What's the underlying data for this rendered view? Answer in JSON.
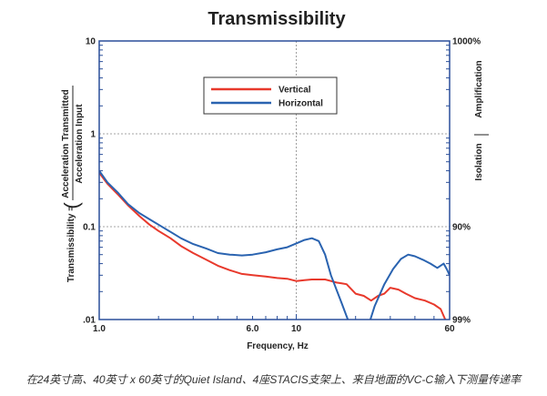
{
  "chart_data": {
    "type": "line",
    "title": "Transmissibility",
    "xlabel": "Frequency, Hz",
    "ylabel_prefix": "Transmissibility =",
    "ylabel_numerator": "Acceleration Transmitted",
    "ylabel_denominator": "Acceleration Input",
    "x_scale": "log",
    "y_scale": "log",
    "xlim": [
      1,
      60
    ],
    "ylim": [
      0.01,
      10
    ],
    "x_ticks": [
      {
        "value": 1,
        "label": "1.0"
      },
      {
        "value": 6,
        "label": "6.0"
      },
      {
        "value": 10,
        "label": "10"
      },
      {
        "value": 60,
        "label": "60"
      }
    ],
    "y_ticks": [
      {
        "value": 10,
        "label": "10"
      },
      {
        "value": 1,
        "label": "1"
      },
      {
        "value": 0.1,
        "label": "0.1"
      },
      {
        "value": 0.01,
        "label": ".01"
      }
    ],
    "right_ticks": [
      {
        "value": 10,
        "label": "1000%"
      },
      {
        "value": 0.1,
        "label": "90%"
      },
      {
        "value": 0.01,
        "label": "99%"
      }
    ],
    "right_labels": {
      "upper": "Amplification",
      "lower": "Isolation"
    },
    "grid": "dashed at decades",
    "legend_placement": "top-center",
    "series": [
      {
        "name": "Vertical",
        "color": "#e8392c",
        "x": [
          1.0,
          1.1,
          1.25,
          1.4,
          1.6,
          1.8,
          2.0,
          2.3,
          2.6,
          3.0,
          3.5,
          4.0,
          4.6,
          5.3,
          6.0,
          7.0,
          8.0,
          9.0,
          10.0,
          11.0,
          12.0,
          13.0,
          14.0,
          15.0,
          16.0,
          17.0,
          18.0,
          20.0,
          22.0,
          24.0,
          26.0,
          28.0,
          30.0,
          33.0,
          36.0,
          40.0,
          45.0,
          50.0,
          54.0,
          57.0
        ],
        "values": [
          0.38,
          0.29,
          0.22,
          0.17,
          0.13,
          0.105,
          0.09,
          0.075,
          0.062,
          0.052,
          0.044,
          0.038,
          0.034,
          0.031,
          0.03,
          0.029,
          0.028,
          0.0275,
          0.026,
          0.0265,
          0.027,
          0.027,
          0.027,
          0.026,
          0.025,
          0.0245,
          0.024,
          0.019,
          0.018,
          0.016,
          0.018,
          0.019,
          0.022,
          0.021,
          0.019,
          0.017,
          0.016,
          0.0145,
          0.013,
          0.01
        ]
      },
      {
        "name": "Horizontal",
        "color": "#2a63b0",
        "x": [
          1.0,
          1.1,
          1.25,
          1.4,
          1.6,
          1.8,
          2.0,
          2.3,
          2.6,
          3.0,
          3.5,
          4.0,
          4.6,
          5.3,
          6.0,
          7.0,
          8.0,
          9.0,
          10.0,
          11.0,
          12.0,
          13.0,
          14.0,
          15.0,
          17.0,
          19.0,
          21.0,
          23.0,
          25.0,
          28.0,
          31.0,
          34.0,
          37.0,
          40.0,
          44.0,
          48.0,
          52.0,
          56.0,
          58.0,
          60.0
        ],
        "values": [
          0.4,
          0.3,
          0.23,
          0.175,
          0.14,
          0.12,
          0.105,
          0.088,
          0.075,
          0.065,
          0.058,
          0.052,
          0.05,
          0.049,
          0.05,
          0.053,
          0.057,
          0.06,
          0.066,
          0.072,
          0.075,
          0.07,
          0.05,
          0.03,
          0.015,
          0.008,
          0.006,
          0.008,
          0.014,
          0.024,
          0.035,
          0.045,
          0.05,
          0.048,
          0.044,
          0.04,
          0.036,
          0.04,
          0.035,
          0.03
        ]
      }
    ]
  },
  "caption": "在24英寸高、40英寸 x 60英寸的Quiet Island、4座STACIS支架上、来自地面的VC-C输入下测量传递率"
}
